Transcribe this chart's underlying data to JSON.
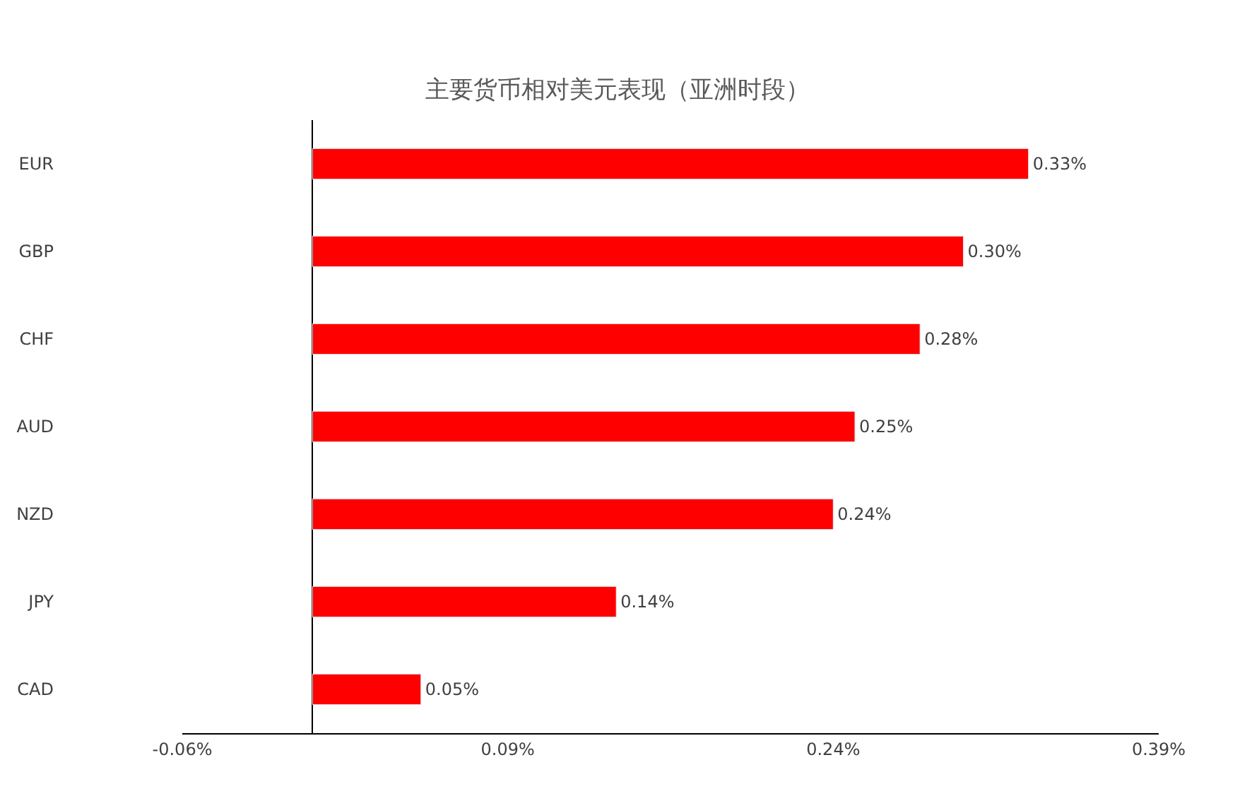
{
  "chart_data": {
    "type": "bar",
    "orientation": "horizontal",
    "title": "主要货币相对美元表现（亚洲时段）",
    "categories": [
      "EUR",
      "GBP",
      "CHF",
      "AUD",
      "NZD",
      "JPY",
      "CAD"
    ],
    "values": [
      0.33,
      0.3,
      0.28,
      0.25,
      0.24,
      0.14,
      0.05
    ],
    "value_labels": [
      "0.33%",
      "0.30%",
      "0.28%",
      "0.25%",
      "0.24%",
      "0.14%",
      "0.05%"
    ],
    "color": "#ff0000",
    "xlim": [
      -0.06,
      0.39
    ],
    "xticks": [
      {
        "value": -0.06,
        "label": "-0.06%"
      },
      {
        "value": 0.09,
        "label": "0.09%"
      },
      {
        "value": 0.24,
        "label": "0.24%"
      },
      {
        "value": 0.39,
        "label": "0.39%"
      }
    ]
  }
}
